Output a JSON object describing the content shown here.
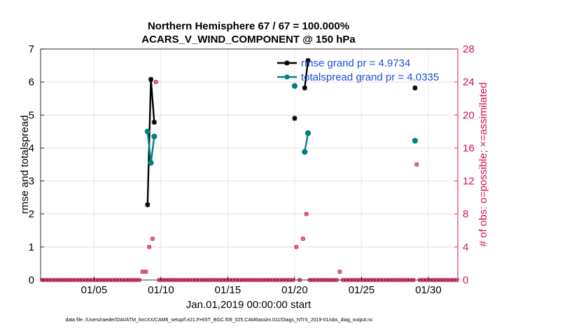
{
  "chart_data": {
    "type": "line",
    "title": "Northern Hemisphere 67 / 67 = 100.000%",
    "subtitle": "ACARS_V_WIND_COMPONENT @ 150 hPa",
    "xlabel": "Jan.01,2019 00:00:00 start",
    "ylabel_left": "rmse and totalspread",
    "ylabel_right": "# of obs: o=possible; ×=assimilated",
    "footnote": "data file: /Users/raeder/DAI/ATM_forcXX/CAM6_setup/f.e21.FHIST_BGC.f09_025.CAM6assim.011/Diags_NTrS_2019-01/obs_diag_output.nc",
    "xlim": [
      1,
      32.2
    ],
    "ylim_left": [
      0,
      7
    ],
    "ylim_right": [
      0,
      28
    ],
    "x_ticks": [
      5,
      10,
      15,
      20,
      25,
      30
    ],
    "x_tick_labels": [
      "01/05",
      "01/10",
      "01/15",
      "01/20",
      "01/25",
      "01/30"
    ],
    "y_left_ticks": [
      0,
      1,
      2,
      3,
      4,
      5,
      6,
      7
    ],
    "y_left_tick_labels": [
      "0",
      "1",
      "2",
      "3",
      "4",
      "5",
      "6",
      "7"
    ],
    "y_right_ticks": [
      0,
      4,
      8,
      12,
      16,
      20,
      24,
      28
    ],
    "y_right_tick_labels": [
      "0",
      "4",
      "8",
      "12",
      "16",
      "20",
      "24",
      "28"
    ],
    "legend_position": "top-right",
    "series": [
      {
        "name": "rmse",
        "legend_label": "rmse grand pr = 4.9734",
        "color": "#000000",
        "segments": [
          [
            [
              9.0,
              2.28
            ],
            [
              9.25,
              6.08
            ],
            [
              9.5,
              4.78
            ]
          ],
          [
            [
              20.0,
              4.9
            ]
          ],
          [
            [
              20.75,
              5.82
            ],
            [
              21.0,
              6.65
            ]
          ],
          [
            [
              29.0,
              5.82
            ]
          ]
        ]
      },
      {
        "name": "totalspread",
        "legend_label": "totalspread grand pr = 4.0335",
        "color": "#008080",
        "segments": [
          [
            [
              9.0,
              4.5
            ],
            [
              9.25,
              3.55
            ],
            [
              9.5,
              4.35
            ]
          ],
          [
            [
              20.0,
              5.88
            ]
          ],
          [
            [
              20.75,
              3.88
            ],
            [
              21.0,
              4.45
            ]
          ],
          [
            [
              29.0,
              4.22
            ]
          ]
        ]
      }
    ],
    "obs_counts": {
      "color": "#d0105a",
      "x_start": 1.125,
      "x_step": 0.25,
      "n": 125,
      "nonzero": [
        {
          "x": 8.625,
          "possible": 1,
          "assimilated": 1
        },
        {
          "x": 8.875,
          "possible": 1,
          "assimilated": 1
        },
        {
          "x": 9.125,
          "possible": 4,
          "assimilated": 4
        },
        {
          "x": 9.375,
          "possible": 5,
          "assimilated": 5
        },
        {
          "x": 9.625,
          "possible": 24,
          "assimilated": 24
        },
        {
          "x": 20.125,
          "possible": 4,
          "assimilated": 4
        },
        {
          "x": 20.625,
          "possible": 5,
          "assimilated": 5
        },
        {
          "x": 20.875,
          "possible": 8,
          "assimilated": 8
        },
        {
          "x": 23.375,
          "possible": 1,
          "assimilated": 1
        },
        {
          "x": 29.125,
          "possible": 14,
          "assimilated": 14
        }
      ]
    }
  }
}
